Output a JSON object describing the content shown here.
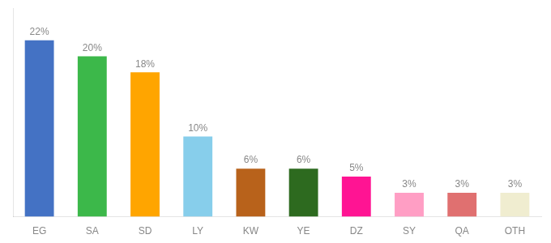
{
  "chart_data": {
    "type": "bar",
    "categories": [
      "EG",
      "SA",
      "SD",
      "LY",
      "KW",
      "YE",
      "DZ",
      "SY",
      "QA",
      "OTH"
    ],
    "values": [
      22,
      20,
      18,
      10,
      6,
      6,
      5,
      3,
      3,
      3
    ],
    "value_labels": [
      "22%",
      "20%",
      "18%",
      "10%",
      "6%",
      "6%",
      "5%",
      "3%",
      "3%",
      "3%"
    ],
    "colors": [
      "#4472C4",
      "#3CB84A",
      "#FFA500",
      "#87CEEB",
      "#B8621B",
      "#2D6A1F",
      "#FF1493",
      "#FF9EC4",
      "#E07070",
      "#F0EDD0"
    ],
    "ylim": [
      0,
      26
    ],
    "data_labels": true,
    "tick_labels": "x",
    "grid": false
  }
}
